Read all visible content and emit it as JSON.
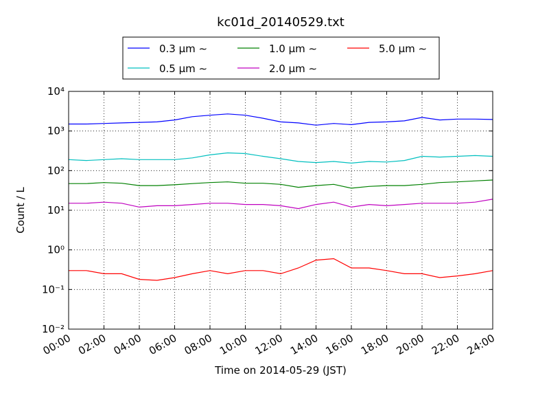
{
  "chart_data": {
    "type": "line",
    "title": "kc01d_20140529.txt",
    "x_label": "Time on 2014-05-29 (JST)",
    "y_label": "Count / L",
    "x": [
      "00:00",
      "01:00",
      "02:00",
      "03:00",
      "04:00",
      "05:00",
      "06:00",
      "07:00",
      "08:00",
      "09:00",
      "10:00",
      "11:00",
      "12:00",
      "13:00",
      "14:00",
      "15:00",
      "16:00",
      "17:00",
      "18:00",
      "19:00",
      "20:00",
      "21:00",
      "22:00",
      "23:00",
      "24:00"
    ],
    "xlim": [
      "00:00",
      "24:00"
    ],
    "xticks": [
      "00:00",
      "02:00",
      "04:00",
      "06:00",
      "08:00",
      "10:00",
      "12:00",
      "14:00",
      "16:00",
      "18:00",
      "20:00",
      "22:00",
      "24:00"
    ],
    "ylim": [
      0.01,
      10000
    ],
    "log_y": true,
    "grid": true,
    "yticks": [
      {
        "value": 0.01,
        "label": "10⁻²"
      },
      {
        "value": 0.1,
        "label": "10⁻¹"
      },
      {
        "value": 1,
        "label": "10⁰"
      },
      {
        "value": 10,
        "label": "10¹"
      },
      {
        "value": 100,
        "label": "10²"
      },
      {
        "value": 1000,
        "label": "10³"
      },
      {
        "value": 10000,
        "label": "10⁴"
      }
    ],
    "series": [
      {
        "name": "0.3 μm ∼",
        "color": "#0000ff",
        "values": [
          1500,
          1500,
          1550,
          1600,
          1650,
          1700,
          1900,
          2300,
          2500,
          2700,
          2500,
          2100,
          1700,
          1600,
          1400,
          1550,
          1450,
          1650,
          1700,
          1800,
          2200,
          1900,
          2000,
          2000,
          1950
        ]
      },
      {
        "name": "0.5 μm ∼",
        "color": "#00bfbf",
        "values": [
          190,
          180,
          190,
          200,
          190,
          190,
          190,
          210,
          250,
          280,
          270,
          230,
          200,
          170,
          160,
          170,
          155,
          170,
          165,
          180,
          230,
          220,
          230,
          240,
          230
        ]
      },
      {
        "name": "1.0 μm ∼",
        "color": "#008000",
        "values": [
          47,
          47,
          50,
          48,
          42,
          42,
          44,
          47,
          50,
          52,
          48,
          48,
          45,
          38,
          42,
          45,
          36,
          40,
          42,
          42,
          45,
          50,
          52,
          55,
          58
        ]
      },
      {
        "name": "2.0 μm ∼",
        "color": "#bf00bf",
        "values": [
          15,
          15,
          16,
          15,
          12,
          13,
          13,
          14,
          15,
          15,
          14,
          14,
          13,
          11,
          14,
          16,
          12,
          14,
          13,
          14,
          15,
          15,
          15,
          16,
          19
        ]
      },
      {
        "name": "5.0 μm ∼",
        "color": "#ff0000",
        "values": [
          0.3,
          0.3,
          0.25,
          0.25,
          0.18,
          0.17,
          0.2,
          0.25,
          0.3,
          0.25,
          0.3,
          0.3,
          0.25,
          0.35,
          0.55,
          0.6,
          0.35,
          0.35,
          0.3,
          0.25,
          0.25,
          0.2,
          0.22,
          0.25,
          0.3
        ]
      }
    ]
  }
}
